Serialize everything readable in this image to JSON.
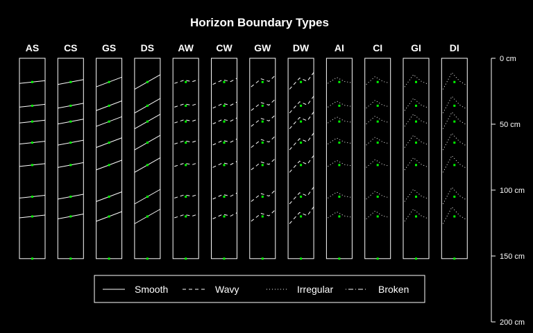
{
  "chart_data": {
    "type": "diagram",
    "title": "Horizon Boundary Types",
    "columns": [
      "AS",
      "CS",
      "GS",
      "DS",
      "AW",
      "CW",
      "GW",
      "DW",
      "AI",
      "CI",
      "GI",
      "DI"
    ],
    "boundary_depths_cm": [
      18,
      36,
      48,
      64,
      81,
      105,
      120
    ],
    "profile_bottom_cm": 152,
    "y_axis": {
      "range": [
        0,
        200
      ],
      "ticks": [
        {
          "value": 0,
          "label": "0 cm"
        },
        {
          "value": 50,
          "label": "50 cm"
        },
        {
          "value": 100,
          "label": "100 cm"
        },
        {
          "value": 150,
          "label": "150 cm"
        },
        {
          "value": 200,
          "label": "200 cm"
        }
      ]
    },
    "legend": {
      "placement": "bottom-center",
      "entries": [
        {
          "label": "Smooth",
          "style": "solid"
        },
        {
          "label": "Wavy",
          "style": "dashed"
        },
        {
          "label": "Irregular",
          "style": "dotted"
        },
        {
          "label": "Broken",
          "style": "dashdot"
        }
      ]
    },
    "colors": {
      "background": "#000000",
      "lines": "#ffffff",
      "markers": "#00ff00"
    }
  }
}
